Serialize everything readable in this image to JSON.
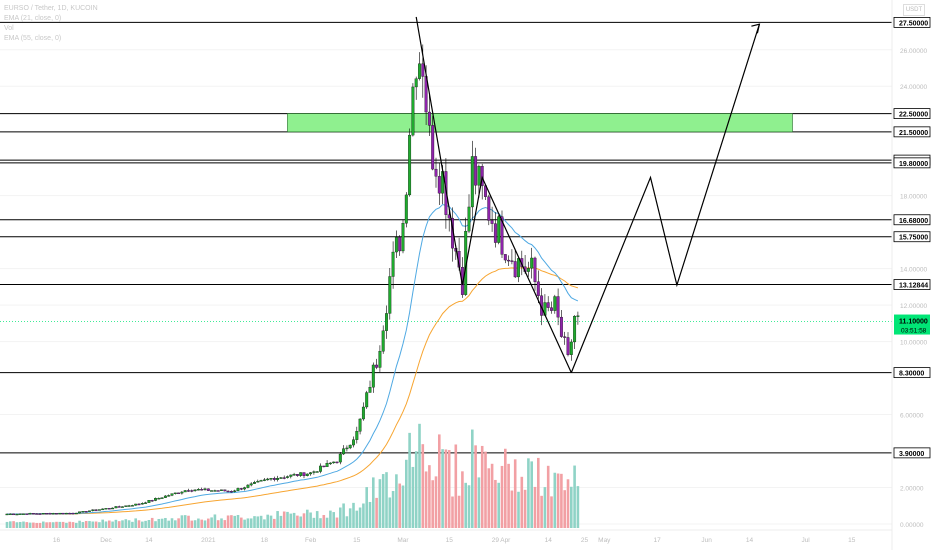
{
  "header": {
    "title": "EURSO / Tether, 1D, KUCOIN",
    "ind1": "EMA (21, close, 0)",
    "ind2": "Vol",
    "ind3": "EMA (55, close, 0)",
    "unit_button": "USDT"
  },
  "price_levels": [
    {
      "label": "27.50000",
      "value": 27.5
    },
    {
      "label": "22.50000",
      "value": 22.5
    },
    {
      "label": "21.50000",
      "value": 21.5
    },
    {
      "label": "19.95000",
      "value": 19.95
    },
    {
      "label": "19.80000",
      "value": 19.8
    },
    {
      "label": "16.68000",
      "value": 16.68
    },
    {
      "label": "15.75000",
      "value": 15.75
    },
    {
      "label": "13.12844",
      "value": 13.12844
    },
    {
      "label": "8.30000",
      "value": 8.3
    },
    {
      "label": "3.90000",
      "value": 3.9
    }
  ],
  "current_price": {
    "label": "11.10000",
    "countdown": "03:51:58",
    "value": 11.1
  },
  "y_axis_ticks": [
    {
      "label": "26.00000",
      "value": 26
    },
    {
      "label": "24.00000",
      "value": 24
    },
    {
      "label": "18.00000",
      "value": 18
    },
    {
      "label": "14.00000",
      "value": 14
    },
    {
      "label": "12.00000",
      "value": 12
    },
    {
      "label": "10.00000",
      "value": 10
    },
    {
      "label": "6.00000",
      "value": 6
    },
    {
      "label": "2.00000",
      "value": 2
    },
    {
      "label": "0.00000",
      "value": 0
    }
  ],
  "x_axis_ticks": [
    {
      "label": "16",
      "day": 15
    },
    {
      "label": "Dec",
      "day": 30
    },
    {
      "label": "14",
      "day": 43
    },
    {
      "label": "2021",
      "day": 61
    },
    {
      "label": "18",
      "day": 78
    },
    {
      "label": "Feb",
      "day": 92
    },
    {
      "label": "15",
      "day": 106
    },
    {
      "label": "Mar",
      "day": 120
    },
    {
      "label": "15",
      "day": 134
    },
    {
      "label": "29",
      "day": 148
    },
    {
      "label": "Apr",
      "day": 151
    },
    {
      "label": "14",
      "day": 164
    },
    {
      "label": "25",
      "day": 175
    },
    {
      "label": "May",
      "day": 181
    },
    {
      "label": "17",
      "day": 197
    },
    {
      "label": "Jun",
      "day": 212
    },
    {
      "label": "14",
      "day": 225
    },
    {
      "label": "Jul",
      "day": 242
    },
    {
      "label": "15",
      "day": 256
    }
  ],
  "colors": {
    "up": "#1faa2e",
    "down": "#8e24aa",
    "vol_up": "#8fd3c6",
    "vol_down": "#f2a0a4",
    "ema21": "#4fa9e3",
    "ema55": "#f7a531",
    "zone": "#8ff08f",
    "current": "#00e676"
  },
  "chart_data": {
    "type": "candlestick",
    "title": "EURSO / Tether, 1D, KUCOIN",
    "ylim": [
      0,
      28
    ],
    "supply_zone": {
      "from_day": 85,
      "to_day": 238,
      "low": 21.5,
      "high": 22.5
    },
    "projection_path": [
      {
        "day": 171,
        "price": 8.3
      },
      {
        "day": 195,
        "price": 19.0
      },
      {
        "day": 203,
        "price": 13.1
      },
      {
        "day": 228,
        "price": 27.4
      }
    ],
    "pattern_path": [
      {
        "day": 124,
        "price": 27.8
      },
      {
        "day": 138,
        "price": 13.1
      },
      {
        "day": 144,
        "price": 19.0
      },
      {
        "day": 171,
        "price": 8.3
      }
    ],
    "anchors": [
      {
        "day": 0,
        "price": 0.55
      },
      {
        "day": 20,
        "price": 0.6
      },
      {
        "day": 40,
        "price": 1.1
      },
      {
        "day": 55,
        "price": 1.9
      },
      {
        "day": 68,
        "price": 1.8
      },
      {
        "day": 80,
        "price": 2.5
      },
      {
        "day": 92,
        "price": 2.8
      },
      {
        "day": 100,
        "price": 3.5
      },
      {
        "day": 106,
        "price": 5.0
      },
      {
        "day": 112,
        "price": 9.0
      },
      {
        "day": 116,
        "price": 13.5
      },
      {
        "day": 120,
        "price": 16.5
      },
      {
        "day": 122,
        "price": 22.0
      },
      {
        "day": 124,
        "price": 26.0
      },
      {
        "day": 126,
        "price": 25.5
      },
      {
        "day": 128,
        "price": 21.0
      },
      {
        "day": 132,
        "price": 19.0
      },
      {
        "day": 136,
        "price": 15.0
      },
      {
        "day": 138,
        "price": 13.5
      },
      {
        "day": 141,
        "price": 19.5
      },
      {
        "day": 144,
        "price": 18.0
      },
      {
        "day": 149,
        "price": 16.0
      },
      {
        "day": 154,
        "price": 14.5
      },
      {
        "day": 159,
        "price": 13.8
      },
      {
        "day": 163,
        "price": 11.5
      },
      {
        "day": 166,
        "price": 11.8
      },
      {
        "day": 169,
        "price": 9.6
      },
      {
        "day": 170,
        "price": 8.8
      },
      {
        "day": 172,
        "price": 11.4
      },
      {
        "day": 173,
        "price": 11.1
      }
    ]
  }
}
